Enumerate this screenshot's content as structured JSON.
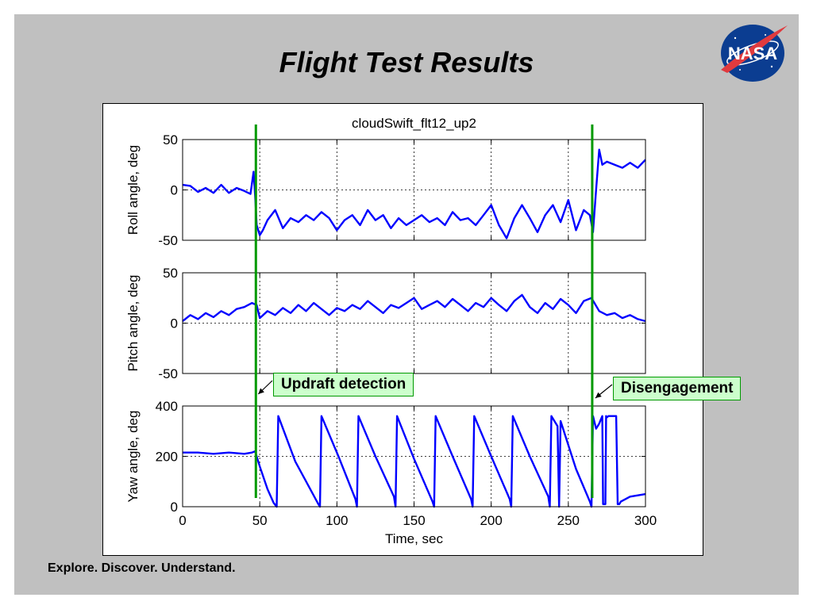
{
  "slide": {
    "title": "Flight Test Results",
    "footer": "Explore. Discover. Understand.",
    "logo_text": "NASA",
    "background_color": "#c0c0c0"
  },
  "annotations": {
    "updraft": {
      "label": "Updraft detection",
      "time": 48
    },
    "disengage": {
      "label": "Disengagement",
      "time": 266
    },
    "line_color": "#009900",
    "box_fill": "#ccffcc"
  },
  "chart_data": {
    "type": "line",
    "title": "cloudSwift_flt12_up2",
    "xlabel": "Time, sec",
    "xlim": [
      0,
      300
    ],
    "xticks": [
      0,
      50,
      100,
      150,
      200,
      250,
      300
    ],
    "grid": true,
    "line_color": "#0000ff",
    "subplots": [
      {
        "ylabel": "Roll angle, deg",
        "ylim": [
          -50,
          50
        ],
        "yticks": [
          -50,
          0,
          50
        ],
        "series": [
          {
            "x": [
              0,
              5,
              10,
              15,
              20,
              25,
              30,
              35,
              40,
              44,
              46,
              47,
              48,
              50,
              52,
              55,
              60,
              65,
              70,
              75,
              80,
              85,
              90,
              95,
              100,
              105,
              110,
              115,
              120,
              125,
              130,
              135,
              140,
              145,
              150,
              155,
              160,
              165,
              170,
              175,
              180,
              185,
              190,
              195,
              200,
              205,
              210,
              215,
              220,
              225,
              230,
              235,
              240,
              245,
              250,
              255,
              260,
              264,
              266,
              268,
              270,
              272,
              275,
              280,
              285,
              290,
              295,
              300
            ],
            "y": [
              5,
              4,
              -2,
              2,
              -3,
              5,
              -3,
              2,
              -1,
              -4,
              18,
              -5,
              -35,
              -45,
              -40,
              -30,
              -20,
              -38,
              -28,
              -32,
              -25,
              -30,
              -22,
              -28,
              -40,
              -30,
              -25,
              -35,
              -20,
              -30,
              -25,
              -38,
              -28,
              -35,
              -30,
              -25,
              -32,
              -28,
              -35,
              -22,
              -30,
              -28,
              -35,
              -25,
              -15,
              -35,
              -48,
              -28,
              -15,
              -28,
              -42,
              -25,
              -15,
              -32,
              -10,
              -40,
              -20,
              -25,
              -42,
              0,
              40,
              25,
              28,
              25,
              22,
              27,
              22,
              30
            ]
          }
        ]
      },
      {
        "ylabel": "Pitch angle, deg",
        "ylim": [
          -50,
          50
        ],
        "yticks": [
          -50,
          0,
          50
        ],
        "series": [
          {
            "x": [
              0,
              5,
              10,
              15,
              20,
              25,
              30,
              35,
              40,
              45,
              48,
              50,
              55,
              60,
              65,
              70,
              75,
              80,
              85,
              90,
              95,
              100,
              105,
              110,
              115,
              120,
              125,
              130,
              135,
              140,
              145,
              150,
              155,
              160,
              165,
              170,
              175,
              180,
              185,
              190,
              195,
              200,
              205,
              210,
              215,
              220,
              225,
              230,
              235,
              240,
              245,
              250,
              255,
              260,
              265,
              270,
              275,
              280,
              285,
              290,
              295,
              300
            ],
            "y": [
              2,
              8,
              4,
              10,
              6,
              12,
              8,
              14,
              16,
              20,
              18,
              5,
              12,
              8,
              15,
              10,
              18,
              12,
              20,
              14,
              8,
              15,
              12,
              18,
              14,
              22,
              16,
              10,
              18,
              15,
              20,
              25,
              14,
              18,
              22,
              16,
              24,
              18,
              12,
              20,
              16,
              25,
              18,
              12,
              22,
              28,
              16,
              10,
              20,
              14,
              24,
              18,
              10,
              22,
              25,
              12,
              8,
              10,
              5,
              8,
              4,
              2
            ]
          }
        ]
      },
      {
        "ylabel": "Yaw angle, deg",
        "ylim": [
          0,
          400
        ],
        "yticks": [
          0,
          200,
          400
        ],
        "series": [
          {
            "x": [
              0,
              10,
              20,
              30,
              40,
              45,
              47,
              50,
              55,
              59,
              61,
              62,
              73,
              88,
              89,
              90,
              101,
              112,
              113,
              114,
              125,
              137,
              138,
              139,
              150,
              162,
              163,
              164,
              175,
              187,
              188,
              189,
              200,
              212,
              213,
              214,
              225,
              237,
              238,
              239,
              243,
              244,
              245,
              255,
              264,
              265,
              266,
              268,
              270,
              271,
              272,
              272.5,
              274,
              274.5,
              275,
              276,
              281,
              282,
              283,
              284,
              290,
              300
            ],
            "y": [
              215,
              215,
              210,
              215,
              210,
              215,
              220,
              160,
              70,
              15,
              0,
              360,
              180,
              10,
              0,
              360,
              200,
              30,
              0,
              360,
              200,
              40,
              0,
              360,
              190,
              20,
              0,
              360,
              200,
              30,
              0,
              360,
              200,
              30,
              0,
              360,
              200,
              40,
              0,
              360,
              320,
              0,
              340,
              150,
              20,
              0,
              360,
              310,
              330,
              345,
              360,
              10,
              10,
              360,
              355,
              360,
              360,
              10,
              10,
              20,
              40,
              50
            ]
          }
        ]
      }
    ]
  }
}
